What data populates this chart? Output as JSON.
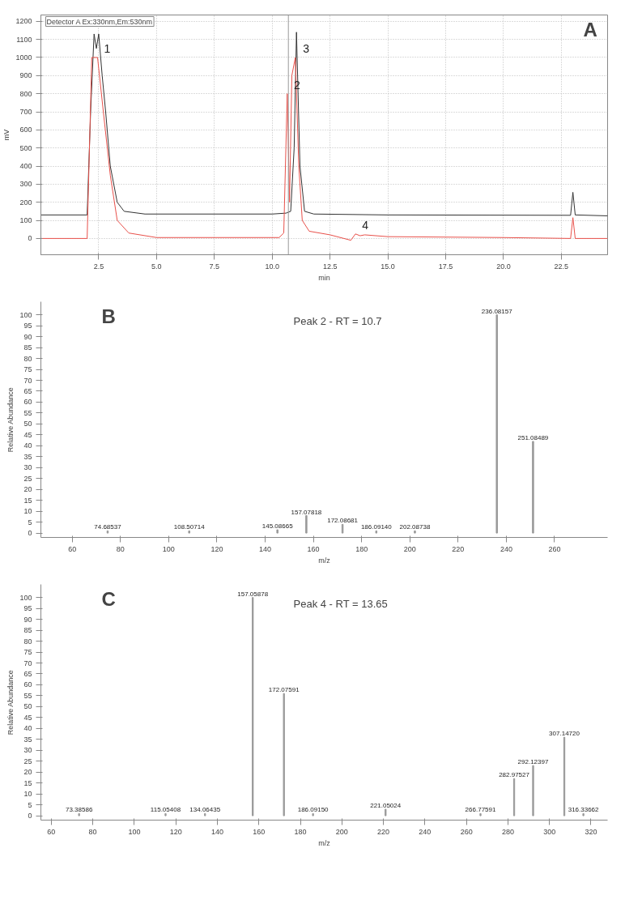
{
  "chart_data": [
    {
      "type": "line",
      "title": "A",
      "ylabel": "mV",
      "xlabel": "min",
      "xlim": [
        0,
        24.5
      ],
      "ylim": [
        -90,
        1235
      ],
      "xticks": [
        2.5,
        {
          "value": 5,
          "label": "5.0"
        },
        7.5,
        {
          "value": 10,
          "label": "10.0"
        },
        12.5,
        {
          "value": 15,
          "label": "15.0"
        },
        17.5,
        {
          "value": 20,
          "label": "20.0"
        },
        22.5
      ],
      "yticks": [
        0,
        100,
        200,
        300,
        400,
        500,
        600,
        700,
        800,
        900,
        1000,
        1100,
        1200
      ],
      "grid": true,
      "line_style": "solid",
      "series": [
        {
          "color": "#333333",
          "x": [
            0,
            2.0,
            2.15,
            2.3,
            2.4,
            2.5,
            2.65,
            2.8,
            3.0,
            3.3,
            3.6,
            4.5,
            10.0,
            10.6,
            10.8,
            10.95,
            11.05,
            11.2,
            11.4,
            11.8,
            15.0,
            22.9,
            23.0,
            23.1,
            24.5
          ],
          "values": [
            130,
            130,
            700,
            1130,
            1050,
            1130,
            900,
            700,
            400,
            200,
            150,
            135,
            135,
            140,
            150,
            500,
            1140,
            400,
            150,
            135,
            130,
            128,
            255,
            130,
            125
          ]
        },
        {
          "color": "#e8504a",
          "x": [
            0,
            2.0,
            2.2,
            2.45,
            2.7,
            3.0,
            3.3,
            3.8,
            5.0,
            10.3,
            10.5,
            10.65,
            10.75,
            10.85,
            11.0,
            11.15,
            11.3,
            11.6,
            12.5,
            13.4,
            13.6,
            13.8,
            14.0,
            15.0,
            20.0,
            22.9,
            23.0,
            23.1,
            24.5
          ],
          "values": [
            0,
            0,
            1000,
            1000,
            700,
            350,
            100,
            30,
            5,
            5,
            30,
            800,
            200,
            900,
            1000,
            400,
            100,
            40,
            20,
            -10,
            25,
            15,
            20,
            10,
            5,
            0,
            115,
            0,
            0
          ]
        }
      ],
      "ref_lines": [
        {
          "axis": "x",
          "value": 10.7,
          "color": "#999999"
        }
      ],
      "annotations": [
        "Detector A Ex:330nm,Em:530nm",
        {
          "text": "1",
          "x": 2.45,
          "y": 1000
        },
        {
          "text": "2",
          "x": 10.65,
          "y": 800
        },
        {
          "text": "3",
          "x": 11.05,
          "y": 1000
        },
        {
          "text": "4",
          "x": 13.6,
          "y": 25
        }
      ]
    },
    {
      "type": "bar",
      "title": "B",
      "subtitle": "Peak 2 - RT = 10.7",
      "xlabel": "m/z",
      "ylabel": "Relative Abundance",
      "xlim": [
        47,
        282
      ],
      "ylim": [
        -2,
        106
      ],
      "xticks": [
        60,
        80,
        100,
        120,
        140,
        160,
        180,
        200,
        220,
        240,
        260
      ],
      "yticks": [
        0,
        5,
        10,
        15,
        20,
        25,
        30,
        35,
        40,
        45,
        50,
        55,
        60,
        65,
        70,
        75,
        80,
        85,
        90,
        95,
        100
      ],
      "grid": false,
      "x": [
        74.68537,
        108.50714,
        145.08665,
        157.07818,
        172.08681,
        186.0914,
        202.08738,
        236.08157,
        251.08489
      ],
      "values": [
        1,
        1,
        1.5,
        8,
        4,
        1,
        1,
        100,
        42
      ],
      "color": "#999999",
      "annotations": [
        {
          "text": "74.68537",
          "x": 74.68537,
          "y": 1
        },
        {
          "text": "108.50714",
          "x": 108.50714,
          "y": 1
        },
        {
          "text": "145.08665",
          "x": 145.08665,
          "y": 1.5
        },
        {
          "text": "157.07818",
          "x": 157.07818,
          "y": 8
        },
        {
          "text": "172.08681",
          "x": 172.08681,
          "y": 4
        },
        {
          "text": "186.09140",
          "x": 186.0914,
          "y": 1
        },
        {
          "text": "202.08738",
          "x": 202.08738,
          "y": 1
        },
        {
          "text": "236.08157",
          "x": 236.08157,
          "y": 100
        },
        {
          "text": "251.08489",
          "x": 251.08489,
          "y": 42
        }
      ]
    },
    {
      "type": "bar",
      "title": "C",
      "subtitle": "Peak 4 - RT = 13.65",
      "xlabel": "m/z",
      "ylabel": "Relative Abundance",
      "xlim": [
        55,
        328
      ],
      "ylim": [
        -2,
        106
      ],
      "xticks": [
        60,
        80,
        100,
        120,
        140,
        160,
        180,
        200,
        220,
        240,
        260,
        280,
        300,
        320
      ],
      "yticks": [
        0,
        5,
        10,
        15,
        20,
        25,
        30,
        35,
        40,
        45,
        50,
        55,
        60,
        65,
        70,
        75,
        80,
        85,
        90,
        95,
        100
      ],
      "grid": false,
      "x": [
        73.38586,
        115.05408,
        134.06435,
        157.05878,
        172.07591,
        186.0915,
        221.05024,
        266.77591,
        282.97527,
        292.12397,
        307.1472,
        316.33662
      ],
      "values": [
        1,
        1,
        1,
        100,
        56,
        1,
        3,
        1,
        17,
        23,
        36,
        1
      ],
      "color": "#999999",
      "annotations": [
        {
          "text": "73.38586",
          "x": 73.38586,
          "y": 1
        },
        {
          "text": "115.05408",
          "x": 115.05408,
          "y": 1
        },
        {
          "text": "134.06435",
          "x": 134.06435,
          "y": 1
        },
        {
          "text": "157.05878",
          "x": 157.05878,
          "y": 100
        },
        {
          "text": "172.07591",
          "x": 172.07591,
          "y": 56
        },
        {
          "text": "186.09150",
          "x": 186.0915,
          "y": 1
        },
        {
          "text": "221.05024",
          "x": 221.05024,
          "y": 3
        },
        {
          "text": "266.77591",
          "x": 266.77591,
          "y": 1
        },
        {
          "text": "282.97527",
          "x": 282.97527,
          "y": 17
        },
        {
          "text": "292.12397",
          "x": 292.12397,
          "y": 23
        },
        {
          "text": "307.14720",
          "x": 307.1472,
          "y": 36
        },
        {
          "text": "316.33662",
          "x": 316.33662,
          "y": 1
        }
      ]
    }
  ]
}
